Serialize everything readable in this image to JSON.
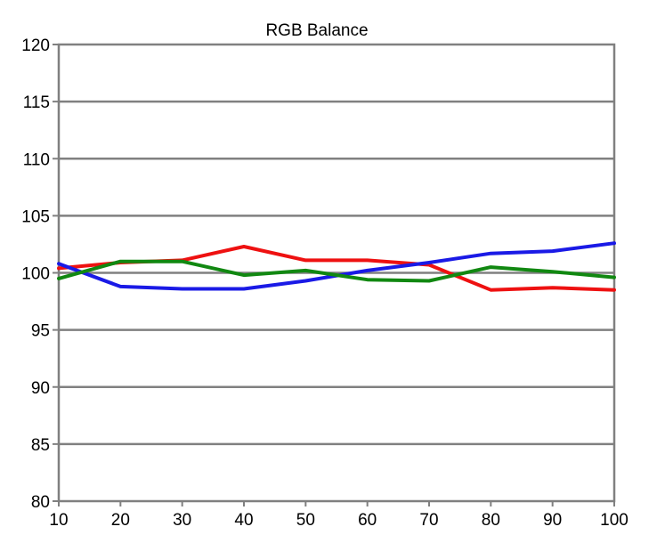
{
  "chart_data": {
    "type": "line",
    "title": "RGB Balance",
    "xlabel": "",
    "ylabel": "",
    "x": [
      10,
      20,
      30,
      40,
      50,
      60,
      70,
      80,
      90,
      100
    ],
    "xlim": [
      10,
      100
    ],
    "ylim": [
      80,
      120
    ],
    "x_ticks": [
      "10",
      "20",
      "30",
      "40",
      "50",
      "60",
      "70",
      "80",
      "90",
      "100"
    ],
    "y_ticks": [
      "80",
      "85",
      "90",
      "95",
      "100",
      "105",
      "110",
      "115",
      "120"
    ],
    "grid": "horizontal",
    "legend": "none",
    "series": [
      {
        "color": "#ee1111",
        "values": [
          100.4,
          100.9,
          101.1,
          102.3,
          101.1,
          101.1,
          100.7,
          98.5,
          98.7,
          98.5
        ]
      },
      {
        "color": "#1a1ae6",
        "values": [
          100.8,
          98.8,
          98.6,
          98.6,
          99.3,
          100.2,
          100.9,
          101.7,
          101.9,
          102.6
        ]
      },
      {
        "color": "#118811",
        "values": [
          99.5,
          101.0,
          101.0,
          99.8,
          100.2,
          99.4,
          99.3,
          100.5,
          100.1,
          99.6
        ]
      }
    ],
    "colors": {
      "grid": "#808080",
      "frame": "#808080"
    }
  }
}
